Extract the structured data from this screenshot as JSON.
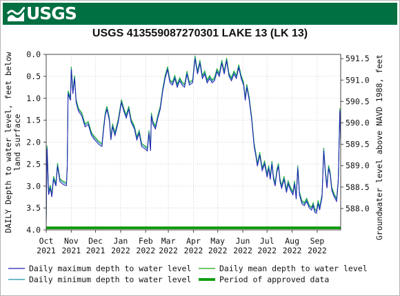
{
  "header": {
    "logo_text": "USGS",
    "colors": {
      "banner": "#006f41",
      "logo": "#ffffff"
    }
  },
  "chart_data": {
    "type": "line",
    "title": "USGS 413559087270301 LAKE 13 (LK 13)",
    "ylabel_left_line1": "DAILY Depth to water level, feet below",
    "ylabel_left_line2": "land surface",
    "ylabel_right": "Groundwater level above NAVD 1988, feet",
    "x_range": [
      "2021-10-01",
      "2022-09-30"
    ],
    "ylim_left": [
      4.0,
      0.0
    ],
    "ylim_right": [
      587.5,
      591.6
    ],
    "grid": true,
    "legend_position": "bottom",
    "x_ticks": [
      {
        "month": "Oct",
        "year": "2021",
        "date": "2021-10-01"
      },
      {
        "month": "Nov",
        "year": "2021",
        "date": "2021-11-01"
      },
      {
        "month": "Dec",
        "year": "2021",
        "date": "2021-12-01"
      },
      {
        "month": "Jan",
        "year": "2022",
        "date": "2022-01-01"
      },
      {
        "month": "Feb",
        "year": "2022",
        "date": "2022-02-01"
      },
      {
        "month": "Mar",
        "year": "2022",
        "date": "2022-03-01"
      },
      {
        "month": "Apr",
        "year": "2022",
        "date": "2022-04-01"
      },
      {
        "month": "May",
        "year": "2022",
        "date": "2022-05-01"
      },
      {
        "month": "Jun",
        "year": "2022",
        "date": "2022-06-01"
      },
      {
        "month": "Jul",
        "year": "2022",
        "date": "2022-07-01"
      },
      {
        "month": "Aug",
        "year": "2022",
        "date": "2022-08-01"
      },
      {
        "month": "Sep",
        "year": "2022",
        "date": "2022-09-01"
      }
    ],
    "y_ticks_left": [
      "0.0",
      "0.5",
      "1.0",
      "1.5",
      "2.0",
      "2.5",
      "3.0",
      "3.5",
      "4.0"
    ],
    "y_ticks_right": [
      "591.5",
      "591.0",
      "590.5",
      "590.0",
      "589.5",
      "589.0",
      "588.5",
      "588.0"
    ],
    "series": [
      {
        "name": "Daily maximum depth to water level",
        "color": "#1c1cb0",
        "points": [
          [
            "2021-10-01",
            3.9
          ],
          [
            "2021-10-02",
            2.15
          ],
          [
            "2021-10-04",
            3.2
          ],
          [
            "2021-10-06",
            3.05
          ],
          [
            "2021-10-08",
            3.25
          ],
          [
            "2021-10-10",
            2.85
          ],
          [
            "2021-10-13",
            3.0
          ],
          [
            "2021-10-15",
            2.55
          ],
          [
            "2021-10-18",
            2.9
          ],
          [
            "2021-10-21",
            2.95
          ],
          [
            "2021-10-24",
            2.98
          ],
          [
            "2021-10-26",
            2.99
          ],
          [
            "2021-10-27",
            2.6
          ],
          [
            "2021-10-28",
            0.9
          ],
          [
            "2021-10-31",
            1.05
          ],
          [
            "2021-11-01",
            0.35
          ],
          [
            "2021-11-03",
            0.9
          ],
          [
            "2021-11-05",
            0.55
          ],
          [
            "2021-11-07",
            1.1
          ],
          [
            "2021-11-10",
            1.3
          ],
          [
            "2021-11-14",
            1.4
          ],
          [
            "2021-11-18",
            1.65
          ],
          [
            "2021-11-22",
            1.6
          ],
          [
            "2021-11-26",
            1.85
          ],
          [
            "2021-11-30",
            1.95
          ],
          [
            "2021-12-05",
            2.05
          ],
          [
            "2021-12-09",
            2.1
          ],
          [
            "2021-12-11",
            1.7
          ],
          [
            "2021-12-13",
            1.4
          ],
          [
            "2021-12-15",
            1.25
          ],
          [
            "2021-12-18",
            1.5
          ],
          [
            "2021-12-20",
            1.95
          ],
          [
            "2021-12-22",
            1.65
          ],
          [
            "2021-12-25",
            1.85
          ],
          [
            "2021-12-29",
            1.55
          ],
          [
            "2022-01-02",
            1.1
          ],
          [
            "2022-01-05",
            1.3
          ],
          [
            "2022-01-08",
            1.45
          ],
          [
            "2022-01-11",
            1.25
          ],
          [
            "2022-01-14",
            1.55
          ],
          [
            "2022-01-18",
            1.7
          ],
          [
            "2022-01-21",
            1.95
          ],
          [
            "2022-01-24",
            1.8
          ],
          [
            "2022-01-27",
            2.1
          ],
          [
            "2022-01-31",
            2.15
          ],
          [
            "2022-02-03",
            2.2
          ],
          [
            "2022-02-05",
            1.8
          ],
          [
            "2022-02-07",
            2.2
          ],
          [
            "2022-02-08",
            1.4
          ],
          [
            "2022-02-10",
            1.6
          ],
          [
            "2022-02-13",
            1.7
          ],
          [
            "2022-02-16",
            1.45
          ],
          [
            "2022-02-19",
            1.25
          ],
          [
            "2022-02-22",
            0.85
          ],
          [
            "2022-02-25",
            0.55
          ],
          [
            "2022-02-28",
            0.35
          ],
          [
            "2022-03-03",
            0.65
          ],
          [
            "2022-03-06",
            0.7
          ],
          [
            "2022-03-09",
            0.55
          ],
          [
            "2022-03-12",
            0.75
          ],
          [
            "2022-03-15",
            0.6
          ],
          [
            "2022-03-18",
            0.7
          ],
          [
            "2022-03-21",
            0.75
          ],
          [
            "2022-03-24",
            0.45
          ],
          [
            "2022-03-27",
            0.7
          ],
          [
            "2022-03-31",
            0.65
          ],
          [
            "2022-04-03",
            0.1
          ],
          [
            "2022-04-06",
            0.45
          ],
          [
            "2022-04-09",
            0.2
          ],
          [
            "2022-04-12",
            0.55
          ],
          [
            "2022-04-15",
            0.45
          ],
          [
            "2022-04-18",
            0.65
          ],
          [
            "2022-04-21",
            0.55
          ],
          [
            "2022-04-24",
            0.65
          ],
          [
            "2022-04-27",
            0.6
          ],
          [
            "2022-04-30",
            0.4
          ],
          [
            "2022-05-03",
            0.5
          ],
          [
            "2022-05-06",
            0.2
          ],
          [
            "2022-05-09",
            0.45
          ],
          [
            "2022-05-12",
            0.15
          ],
          [
            "2022-05-15",
            0.5
          ],
          [
            "2022-05-18",
            0.6
          ],
          [
            "2022-05-21",
            0.45
          ],
          [
            "2022-05-24",
            0.55
          ],
          [
            "2022-05-27",
            0.3
          ],
          [
            "2022-05-30",
            0.55
          ],
          [
            "2022-06-02",
            0.7
          ],
          [
            "2022-06-04",
            1.05
          ],
          [
            "2022-06-06",
            0.75
          ],
          [
            "2022-06-09",
            1.05
          ],
          [
            "2022-06-12",
            1.5
          ],
          [
            "2022-06-15",
            2.1
          ],
          [
            "2022-06-17",
            2.3
          ],
          [
            "2022-06-19",
            2.55
          ],
          [
            "2022-06-22",
            2.3
          ],
          [
            "2022-06-25",
            2.65
          ],
          [
            "2022-06-28",
            2.5
          ],
          [
            "2022-07-01",
            2.8
          ],
          [
            "2022-07-03",
            2.6
          ],
          [
            "2022-07-05",
            2.85
          ],
          [
            "2022-07-07",
            2.5
          ],
          [
            "2022-07-09",
            2.85
          ],
          [
            "2022-07-11",
            3.0
          ],
          [
            "2022-07-13",
            2.7
          ],
          [
            "2022-07-15",
            2.55
          ],
          [
            "2022-07-17",
            2.9
          ],
          [
            "2022-07-19",
            3.05
          ],
          [
            "2022-07-22",
            2.85
          ],
          [
            "2022-07-25",
            3.15
          ],
          [
            "2022-07-27",
            2.95
          ],
          [
            "2022-07-30",
            3.1
          ],
          [
            "2022-08-02",
            3.2
          ],
          [
            "2022-08-04",
            2.95
          ],
          [
            "2022-08-06",
            3.3
          ],
          [
            "2022-08-08",
            2.6
          ],
          [
            "2022-08-10",
            3.2
          ],
          [
            "2022-08-13",
            3.4
          ],
          [
            "2022-08-16",
            3.45
          ],
          [
            "2022-08-19",
            3.35
          ],
          [
            "2022-08-22",
            3.5
          ],
          [
            "2022-08-25",
            3.55
          ],
          [
            "2022-08-27",
            3.45
          ],
          [
            "2022-08-29",
            3.6
          ],
          [
            "2022-08-31",
            3.62
          ],
          [
            "2022-09-02",
            3.4
          ],
          [
            "2022-09-04",
            3.55
          ],
          [
            "2022-09-07",
            3.25
          ],
          [
            "2022-09-09",
            2.2
          ],
          [
            "2022-09-11",
            2.7
          ],
          [
            "2022-09-13",
            3.05
          ],
          [
            "2022-09-15",
            2.6
          ],
          [
            "2022-09-17",
            2.75
          ],
          [
            "2022-09-19",
            3.1
          ],
          [
            "2022-09-22",
            3.25
          ],
          [
            "2022-09-25",
            3.35
          ],
          [
            "2022-09-27",
            2.9
          ],
          [
            "2022-09-29",
            1.3
          ],
          [
            "2022-09-30",
            2.0
          ]
        ]
      },
      {
        "name": "Daily minimum depth to water level",
        "color": "#1a8fa8",
        "offset": -0.04
      },
      {
        "name": "Daily mean depth to water level",
        "color": "#17a417",
        "offset": -0.07
      }
    ],
    "approved_period": {
      "name": "Period of approved data",
      "color": "#119d11",
      "start": "2021-10-01",
      "end": "2022-09-30"
    }
  }
}
